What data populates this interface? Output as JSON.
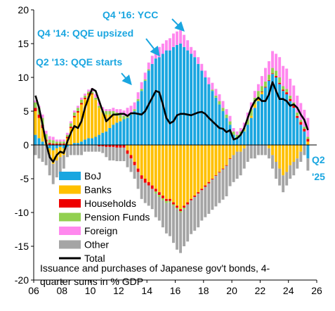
{
  "chart_data": {
    "type": "bar",
    "subtype": "stacked bar with line overlay",
    "caption_lines": [
      "Issuance and purchases of Japanese gov't bonds, 4-",
      "quarter sums in % GDP"
    ],
    "xlabel": "",
    "ylabel": "",
    "xlim": [
      2006,
      2026
    ],
    "ylim": [
      -20,
      20
    ],
    "x_ticks": [
      {
        "value": 2006,
        "label": "06"
      },
      {
        "value": 2008,
        "label": "08"
      },
      {
        "value": 2010,
        "label": "10"
      },
      {
        "value": 2012,
        "label": "12"
      },
      {
        "value": 2014,
        "label": "14"
      },
      {
        "value": 2016,
        "label": "16"
      },
      {
        "value": 2018,
        "label": "18"
      },
      {
        "value": 2020,
        "label": "20"
      },
      {
        "value": 2022,
        "label": "22"
      },
      {
        "value": 2024,
        "label": "24"
      },
      {
        "value": 2026,
        "label": "26"
      }
    ],
    "y_ticks": [
      {
        "value": 20,
        "label": "20"
      },
      {
        "value": 15,
        "label": "15"
      },
      {
        "value": 10,
        "label": "10"
      },
      {
        "value": 5,
        "label": "5"
      },
      {
        "value": 0,
        "label": "0"
      },
      {
        "value": -5,
        "label": "-5"
      },
      {
        "value": -10,
        "label": "-10"
      },
      {
        "value": -15,
        "label": "-15"
      },
      {
        "value": -20,
        "label": "-20"
      }
    ],
    "grid": false,
    "legend_position": "bottom-left",
    "legend": [
      {
        "name": "BoJ",
        "color": "#1aa6e0",
        "kind": "bar"
      },
      {
        "name": "Banks",
        "color": "#ffc000",
        "kind": "bar"
      },
      {
        "name": "Households",
        "color": "#ee0000",
        "kind": "bar"
      },
      {
        "name": "Pension Funds",
        "color": "#92d050",
        "kind": "bar"
      },
      {
        "name": "Foreign",
        "color": "#ff88ee",
        "kind": "bar"
      },
      {
        "name": "Other",
        "color": "#a5a5a5",
        "kind": "bar"
      },
      {
        "name": "Total",
        "color": "#000000",
        "kind": "line"
      }
    ],
    "x": [
      2006.0,
      2006.25,
      2006.5,
      2006.75,
      2007.0,
      2007.25,
      2007.5,
      2007.75,
      2008.0,
      2008.25,
      2008.5,
      2008.75,
      2009.0,
      2009.25,
      2009.5,
      2009.75,
      2010.0,
      2010.25,
      2010.5,
      2010.75,
      2011.0,
      2011.25,
      2011.5,
      2011.75,
      2012.0,
      2012.25,
      2012.5,
      2012.75,
      2013.0,
      2013.25,
      2013.5,
      2013.75,
      2014.0,
      2014.25,
      2014.5,
      2014.75,
      2015.0,
      2015.25,
      2015.5,
      2015.75,
      2016.0,
      2016.25,
      2016.5,
      2016.75,
      2017.0,
      2017.25,
      2017.5,
      2017.75,
      2018.0,
      2018.25,
      2018.5,
      2018.75,
      2019.0,
      2019.25,
      2019.5,
      2019.75,
      2020.0,
      2020.25,
      2020.5,
      2020.75,
      2021.0,
      2021.25,
      2021.5,
      2021.75,
      2022.0,
      2022.25,
      2022.5,
      2022.75,
      2023.0,
      2023.25,
      2023.5,
      2023.75,
      2024.0,
      2024.25,
      2024.5,
      2024.75,
      2025.0,
      2025.25
    ],
    "series": [
      {
        "name": "BoJ",
        "values": [
          1.5,
          1.0,
          0.5,
          0.0,
          -0.5,
          -0.8,
          -0.5,
          -0.3,
          -0.5,
          -0.3,
          0.0,
          0.3,
          0.3,
          0.5,
          0.8,
          1.0,
          1.0,
          1.2,
          1.5,
          1.8,
          2.0,
          2.5,
          3.0,
          3.3,
          3.5,
          3.8,
          4.0,
          4.5,
          5.0,
          6.5,
          8.0,
          9.5,
          11.0,
          12.0,
          12.8,
          13.0,
          13.5,
          14.0,
          14.0,
          14.5,
          14.8,
          15.0,
          14.5,
          14.0,
          13.5,
          13.0,
          12.0,
          11.0,
          10.0,
          9.0,
          8.0,
          7.0,
          6.0,
          5.0,
          4.0,
          3.0,
          1.5,
          1.0,
          1.5,
          2.0,
          3.0,
          4.0,
          5.5,
          6.5,
          7.5,
          8.5,
          9.5,
          10.5,
          10.0,
          9.0,
          8.0,
          7.5,
          6.5,
          5.5,
          4.0,
          3.0,
          2.0,
          -2.0
        ]
      },
      {
        "name": "Banks",
        "values": [
          3.5,
          3.0,
          2.0,
          0.5,
          -1.0,
          -2.0,
          -1.8,
          -1.5,
          -1.0,
          1.0,
          2.5,
          3.8,
          4.5,
          5.5,
          6.0,
          6.5,
          6.5,
          5.5,
          4.0,
          3.0,
          2.5,
          2.0,
          1.5,
          1.0,
          0.5,
          0.0,
          -0.8,
          -1.5,
          -2.5,
          -3.5,
          -4.5,
          -5.0,
          -5.5,
          -6.0,
          -6.5,
          -7.0,
          -7.5,
          -8.0,
          -8.0,
          -8.5,
          -9.0,
          -9.5,
          -9.0,
          -8.5,
          -8.0,
          -7.5,
          -7.0,
          -6.5,
          -6.0,
          -5.5,
          -5.0,
          -4.5,
          -4.0,
          -3.5,
          -3.0,
          -2.0,
          -1.5,
          -1.0,
          -1.0,
          -0.5,
          0.0,
          0.3,
          0.5,
          0.5,
          0.3,
          0.0,
          -0.5,
          -1.5,
          -2.5,
          -3.5,
          -4.5,
          -4.0,
          -3.0,
          -2.5,
          -2.0,
          -1.0,
          0.0,
          0.5
        ]
      },
      {
        "name": "Households",
        "values": [
          0.5,
          0.5,
          0.5,
          0.3,
          0.3,
          0.2,
          0.2,
          0.2,
          0.2,
          0.2,
          0.2,
          0.2,
          0.2,
          0.2,
          0.2,
          0.1,
          0.1,
          0.0,
          -0.2,
          -0.2,
          -0.3,
          -0.3,
          -0.3,
          -0.4,
          -0.4,
          -0.4,
          -0.5,
          -0.5,
          -0.5,
          -0.5,
          -0.5,
          -0.6,
          -0.5,
          -0.5,
          -0.4,
          -0.4,
          -0.4,
          -0.3,
          -0.3,
          -0.3,
          -0.3,
          -0.3,
          -0.3,
          -0.3,
          -0.2,
          -0.2,
          -0.2,
          -0.2,
          -0.2,
          -0.2,
          -0.1,
          -0.1,
          -0.1,
          -0.1,
          -0.1,
          -0.1,
          0.0,
          0.0,
          0.0,
          0.0,
          0.0,
          0.0,
          0.0,
          0.0,
          0.1,
          0.1,
          0.1,
          0.1,
          0.2,
          0.2,
          0.2,
          0.3,
          0.3,
          0.3,
          0.3,
          0.4,
          0.4,
          0.4
        ]
      },
      {
        "name": "Pension Funds",
        "values": [
          0.8,
          1.0,
          1.0,
          0.8,
          0.5,
          0.5,
          0.3,
          0.3,
          0.3,
          0.3,
          0.5,
          0.5,
          0.5,
          0.5,
          0.3,
          0.3,
          0.3,
          0.3,
          0.3,
          0.3,
          0.5,
          0.5,
          0.5,
          0.5,
          0.5,
          0.5,
          0.5,
          0.3,
          0.3,
          0.3,
          0.3,
          0.2,
          0.2,
          0.0,
          -0.3,
          -0.3,
          -0.3,
          -0.3,
          -0.2,
          -0.2,
          -0.2,
          -0.2,
          -0.2,
          0.0,
          0.0,
          0.0,
          0.0,
          0.0,
          0.0,
          0.0,
          0.2,
          0.3,
          0.5,
          0.5,
          0.5,
          0.5,
          0.5,
          0.5,
          0.5,
          0.5,
          0.8,
          1.0,
          1.0,
          1.0,
          0.8,
          0.8,
          0.8,
          0.8,
          0.8,
          0.8,
          0.5,
          0.5,
          0.5,
          0.5,
          0.5,
          0.3,
          0.3,
          0.3
        ]
      },
      {
        "name": "Foreign",
        "values": [
          0.3,
          0.3,
          0.5,
          0.5,
          0.5,
          0.5,
          0.3,
          0.3,
          0.3,
          0.3,
          0.3,
          0.3,
          0.3,
          0.3,
          0.3,
          0.3,
          0.5,
          0.5,
          0.5,
          0.5,
          0.3,
          0.3,
          0.5,
          0.5,
          0.8,
          0.8,
          1.0,
          1.0,
          1.0,
          1.0,
          1.0,
          1.0,
          1.0,
          1.2,
          1.5,
          1.5,
          1.5,
          1.5,
          1.8,
          2.0,
          2.0,
          2.0,
          1.8,
          1.5,
          1.0,
          1.0,
          1.0,
          1.0,
          1.0,
          1.0,
          1.0,
          1.0,
          1.0,
          1.0,
          0.8,
          0.8,
          0.5,
          0.5,
          0.5,
          0.8,
          1.0,
          1.0,
          1.0,
          1.0,
          1.5,
          2.0,
          2.0,
          2.5,
          2.5,
          3.0,
          3.0,
          3.0,
          2.5,
          2.5,
          2.5,
          2.5,
          2.5,
          2.8
        ]
      },
      {
        "name": "Other",
        "values": [
          -1.5,
          -2.0,
          -2.5,
          -3.0,
          -3.0,
          -3.0,
          -2.5,
          -2.5,
          -2.0,
          -1.5,
          -1.5,
          -1.5,
          -1.5,
          -1.5,
          -1.0,
          -1.0,
          -1.0,
          -1.0,
          -0.8,
          -1.0,
          -1.5,
          -2.0,
          -2.0,
          -2.0,
          -2.0,
          -2.0,
          -2.0,
          -2.0,
          -2.0,
          -2.5,
          -3.0,
          -3.0,
          -3.0,
          -3.0,
          -3.5,
          -3.5,
          -4.0,
          -4.5,
          -5.0,
          -5.5,
          -6.0,
          -6.0,
          -5.5,
          -5.5,
          -5.0,
          -5.0,
          -5.0,
          -4.5,
          -4.5,
          -4.5,
          -4.5,
          -4.5,
          -4.5,
          -4.5,
          -4.5,
          -4.0,
          -4.0,
          -4.0,
          -3.5,
          -3.0,
          -2.5,
          -2.0,
          -2.0,
          -1.5,
          -1.5,
          -1.5,
          -1.5,
          -2.0,
          -2.5,
          -2.5,
          -2.5,
          -2.0,
          -2.0,
          -2.0,
          -1.5,
          -1.5,
          -1.5,
          -1.8
        ]
      }
    ],
    "total": [
      7.3,
      5.5,
      3.0,
      0.3,
      -1.8,
      -2.5,
      -1.5,
      -1.0,
      -1.2,
      0.5,
      1.8,
      2.8,
      2.5,
      3.5,
      5.5,
      7.0,
      8.3,
      8.0,
      6.5,
      5.0,
      3.5,
      4.0,
      4.5,
      4.5,
      4.6,
      4.6,
      4.3,
      4.7,
      4.7,
      4.6,
      4.5,
      5.0,
      6.0,
      7.0,
      8.0,
      7.8,
      6.0,
      4.0,
      3.2,
      3.5,
      4.4,
      4.6,
      4.6,
      4.5,
      4.4,
      4.6,
      4.8,
      4.9,
      4.6,
      4.0,
      3.5,
      3.0,
      2.5,
      2.4,
      1.9,
      2.2,
      0.8,
      1.0,
      1.5,
      2.5,
      4.0,
      5.5,
      6.5,
      7.0,
      6.5,
      6.5,
      7.5,
      9.3,
      8.0,
      6.8,
      6.8,
      6.5,
      5.8,
      6.0,
      5.5,
      4.5,
      3.7,
      2.2
    ],
    "annotations": [
      {
        "text": "Q4 '16: YCC",
        "color": "#1aa6e0",
        "arrow_to": {
          "x": 2016.75,
          "y": 16.5
        }
      },
      {
        "text": "Q4 '14: QQE upsized",
        "color": "#1aa6e0",
        "arrow_to": {
          "x": 2014.75,
          "y": 13.5
        }
      },
      {
        "text": "Q2 '13: QQE starts",
        "color": "#1aa6e0",
        "arrow_to": {
          "x": 2013.25,
          "y": 9.0
        }
      },
      {
        "text_lines": [
          "Q2",
          "'25"
        ],
        "color": "#1aa6e0"
      }
    ]
  }
}
